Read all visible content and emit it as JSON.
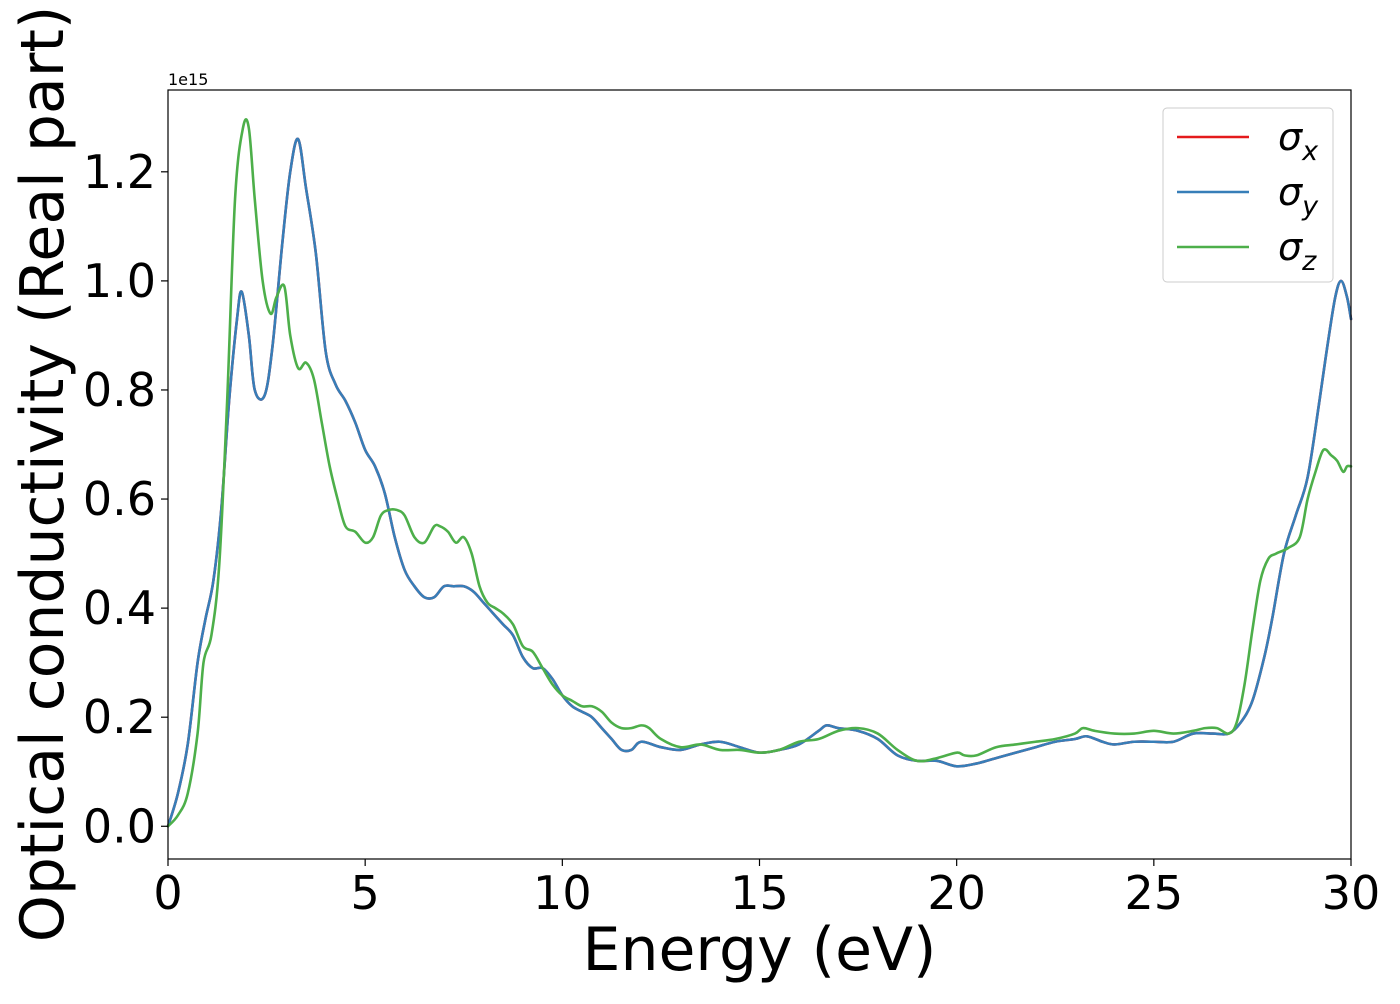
{
  "chart_data": {
    "type": "line",
    "xlabel": "Energy (eV)",
    "ylabel": "Optical conductivity (Real part)",
    "offset_text": "1e15",
    "xlim": [
      0,
      30
    ],
    "ylim": [
      -0.06,
      1.35
    ],
    "x_ticks": [
      0,
      5,
      10,
      15,
      20,
      25,
      30
    ],
    "x_tick_labels": [
      "0",
      "5",
      "10",
      "15",
      "20",
      "25",
      "30"
    ],
    "y_ticks": [
      0.0,
      0.2,
      0.4,
      0.6,
      0.8,
      1.0,
      1.2
    ],
    "y_tick_labels": [
      "0.0",
      "0.2",
      "0.4",
      "0.6",
      "0.8",
      "1.0",
      "1.2"
    ],
    "grid": false,
    "legend_position": "top-right",
    "series": [
      {
        "name": "σ_x",
        "label_base": "σ",
        "label_sub": "x",
        "color": "#e41a1c",
        "x": [
          0,
          0.25,
          0.5,
          0.75,
          0.95,
          1.15,
          1.35,
          1.55,
          1.75,
          1.87,
          2.05,
          2.2,
          2.45,
          2.65,
          2.9,
          3.1,
          3.3,
          3.5,
          3.75,
          4.0,
          4.25,
          4.5,
          4.75,
          5.0,
          5.25,
          5.5,
          5.75,
          6.0,
          6.25,
          6.5,
          6.75,
          7.0,
          7.25,
          7.5,
          7.75,
          8.0,
          8.25,
          8.5,
          8.75,
          9.0,
          9.25,
          9.5,
          9.75,
          10.0,
          10.25,
          10.5,
          10.75,
          11.0,
          11.25,
          11.5,
          11.75,
          12.0,
          12.5,
          13.0,
          13.5,
          14.0,
          14.5,
          15.0,
          15.5,
          16.0,
          16.5,
          16.7,
          17.0,
          17.5,
          18.0,
          18.5,
          19.0,
          19.5,
          20.0,
          20.5,
          21.0,
          21.5,
          22.0,
          22.5,
          23.0,
          23.3,
          23.7,
          24.0,
          24.5,
          25.0,
          25.5,
          26.0,
          26.5,
          26.9,
          27.2,
          27.5,
          27.8,
          28.0,
          28.3,
          28.6,
          28.9,
          29.2,
          29.4,
          29.6,
          29.75,
          29.9,
          30.0
        ],
        "y": [
          0.0,
          0.06,
          0.15,
          0.3,
          0.38,
          0.45,
          0.58,
          0.78,
          0.93,
          0.98,
          0.9,
          0.8,
          0.79,
          0.88,
          1.07,
          1.2,
          1.26,
          1.17,
          1.05,
          0.87,
          0.81,
          0.78,
          0.74,
          0.69,
          0.66,
          0.61,
          0.53,
          0.47,
          0.44,
          0.42,
          0.42,
          0.44,
          0.44,
          0.44,
          0.43,
          0.41,
          0.39,
          0.37,
          0.35,
          0.31,
          0.29,
          0.29,
          0.27,
          0.24,
          0.22,
          0.21,
          0.2,
          0.18,
          0.16,
          0.14,
          0.14,
          0.155,
          0.145,
          0.14,
          0.15,
          0.155,
          0.145,
          0.135,
          0.14,
          0.15,
          0.175,
          0.185,
          0.18,
          0.175,
          0.16,
          0.13,
          0.12,
          0.12,
          0.11,
          0.115,
          0.125,
          0.135,
          0.145,
          0.155,
          0.16,
          0.165,
          0.155,
          0.15,
          0.155,
          0.155,
          0.155,
          0.17,
          0.17,
          0.17,
          0.19,
          0.23,
          0.31,
          0.38,
          0.5,
          0.57,
          0.64,
          0.78,
          0.88,
          0.97,
          1.0,
          0.97,
          0.93
        ]
      },
      {
        "name": "σ_y",
        "label_base": "σ",
        "label_sub": "y",
        "color": "#377eb8",
        "x": [
          0,
          0.25,
          0.5,
          0.75,
          0.95,
          1.15,
          1.35,
          1.55,
          1.75,
          1.87,
          2.05,
          2.2,
          2.45,
          2.65,
          2.9,
          3.1,
          3.3,
          3.5,
          3.75,
          4.0,
          4.25,
          4.5,
          4.75,
          5.0,
          5.25,
          5.5,
          5.75,
          6.0,
          6.25,
          6.5,
          6.75,
          7.0,
          7.25,
          7.5,
          7.75,
          8.0,
          8.25,
          8.5,
          8.75,
          9.0,
          9.25,
          9.5,
          9.75,
          10.0,
          10.25,
          10.5,
          10.75,
          11.0,
          11.25,
          11.5,
          11.75,
          12.0,
          12.5,
          13.0,
          13.5,
          14.0,
          14.5,
          15.0,
          15.5,
          16.0,
          16.5,
          16.7,
          17.0,
          17.5,
          18.0,
          18.5,
          19.0,
          19.5,
          20.0,
          20.5,
          21.0,
          21.5,
          22.0,
          22.5,
          23.0,
          23.3,
          23.7,
          24.0,
          24.5,
          25.0,
          25.5,
          26.0,
          26.5,
          26.9,
          27.2,
          27.5,
          27.8,
          28.0,
          28.3,
          28.6,
          28.9,
          29.2,
          29.4,
          29.6,
          29.75,
          29.9,
          30.0
        ],
        "y": [
          0.0,
          0.06,
          0.15,
          0.3,
          0.38,
          0.45,
          0.58,
          0.78,
          0.93,
          0.98,
          0.9,
          0.8,
          0.79,
          0.88,
          1.07,
          1.2,
          1.26,
          1.17,
          1.05,
          0.87,
          0.81,
          0.78,
          0.74,
          0.69,
          0.66,
          0.61,
          0.53,
          0.47,
          0.44,
          0.42,
          0.42,
          0.44,
          0.44,
          0.44,
          0.43,
          0.41,
          0.39,
          0.37,
          0.35,
          0.31,
          0.29,
          0.29,
          0.27,
          0.24,
          0.22,
          0.21,
          0.2,
          0.18,
          0.16,
          0.14,
          0.14,
          0.155,
          0.145,
          0.14,
          0.15,
          0.155,
          0.145,
          0.135,
          0.14,
          0.15,
          0.175,
          0.185,
          0.18,
          0.175,
          0.16,
          0.13,
          0.12,
          0.12,
          0.11,
          0.115,
          0.125,
          0.135,
          0.145,
          0.155,
          0.16,
          0.165,
          0.155,
          0.15,
          0.155,
          0.155,
          0.155,
          0.17,
          0.17,
          0.17,
          0.19,
          0.23,
          0.31,
          0.38,
          0.5,
          0.57,
          0.64,
          0.78,
          0.88,
          0.97,
          1.0,
          0.97,
          0.93
        ]
      },
      {
        "name": "σ_z",
        "label_base": "σ",
        "label_sub": "z",
        "color": "#4daf4a",
        "x": [
          0,
          0.25,
          0.5,
          0.75,
          0.9,
          1.1,
          1.3,
          1.5,
          1.7,
          1.9,
          2.05,
          2.2,
          2.4,
          2.6,
          2.75,
          2.95,
          3.1,
          3.3,
          3.5,
          3.7,
          3.9,
          4.1,
          4.3,
          4.5,
          4.75,
          5.0,
          5.2,
          5.4,
          5.6,
          5.8,
          6.0,
          6.25,
          6.5,
          6.75,
          6.9,
          7.1,
          7.3,
          7.5,
          7.7,
          7.9,
          8.1,
          8.3,
          8.5,
          8.75,
          9.0,
          9.25,
          9.5,
          9.75,
          10.0,
          10.25,
          10.5,
          10.75,
          11.0,
          11.25,
          11.5,
          11.75,
          12.0,
          12.2,
          12.5,
          13.0,
          13.5,
          14.0,
          14.5,
          15.0,
          15.5,
          16.0,
          16.5,
          17.0,
          17.5,
          18.0,
          18.5,
          19.0,
          19.5,
          20.0,
          20.2,
          20.5,
          21.0,
          21.5,
          22.0,
          22.5,
          23.0,
          23.2,
          23.5,
          24.0,
          24.5,
          25.0,
          25.5,
          26.0,
          26.3,
          26.6,
          26.9,
          27.1,
          27.3,
          27.5,
          27.7,
          27.9,
          28.1,
          28.4,
          28.7,
          28.9,
          29.1,
          29.3,
          29.5,
          29.65,
          29.8,
          29.9,
          30.0
        ],
        "y": [
          0.0,
          0.02,
          0.06,
          0.17,
          0.3,
          0.35,
          0.48,
          0.78,
          1.15,
          1.28,
          1.28,
          1.15,
          1.0,
          0.94,
          0.97,
          0.99,
          0.9,
          0.84,
          0.85,
          0.82,
          0.74,
          0.66,
          0.6,
          0.55,
          0.54,
          0.52,
          0.53,
          0.57,
          0.58,
          0.58,
          0.57,
          0.53,
          0.52,
          0.55,
          0.55,
          0.54,
          0.52,
          0.53,
          0.5,
          0.44,
          0.41,
          0.4,
          0.39,
          0.37,
          0.33,
          0.32,
          0.29,
          0.26,
          0.24,
          0.23,
          0.22,
          0.22,
          0.21,
          0.19,
          0.18,
          0.18,
          0.185,
          0.18,
          0.16,
          0.145,
          0.15,
          0.14,
          0.14,
          0.135,
          0.14,
          0.155,
          0.16,
          0.175,
          0.18,
          0.17,
          0.14,
          0.12,
          0.125,
          0.135,
          0.13,
          0.13,
          0.145,
          0.15,
          0.155,
          0.16,
          0.17,
          0.18,
          0.175,
          0.17,
          0.17,
          0.175,
          0.17,
          0.175,
          0.18,
          0.18,
          0.17,
          0.19,
          0.26,
          0.36,
          0.45,
          0.49,
          0.5,
          0.51,
          0.53,
          0.6,
          0.65,
          0.69,
          0.68,
          0.67,
          0.65,
          0.66,
          0.66
        ]
      }
    ]
  }
}
